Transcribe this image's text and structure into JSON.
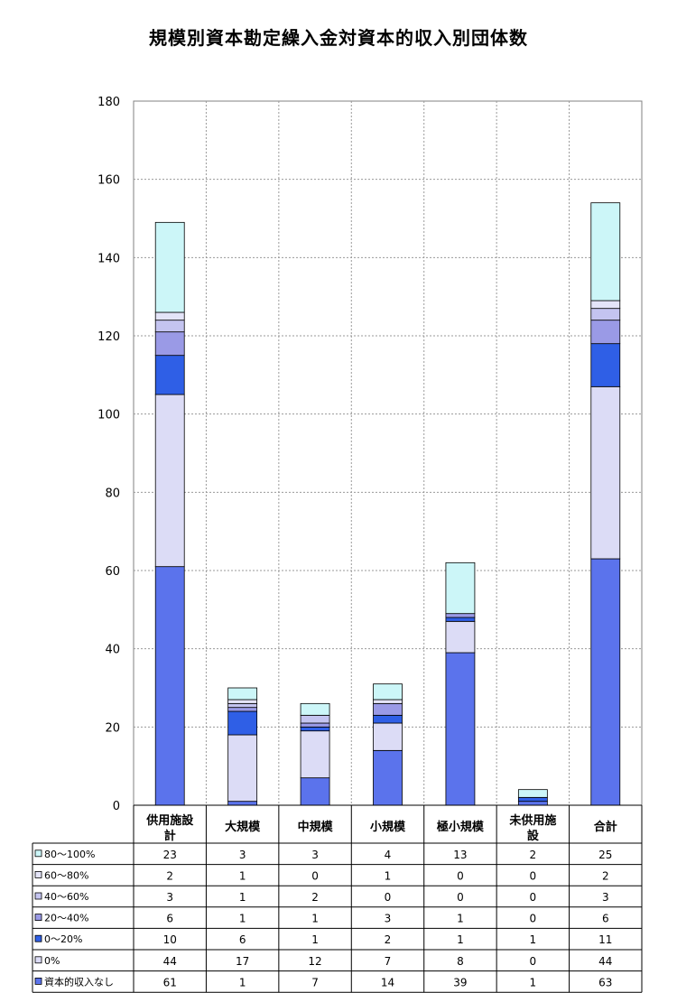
{
  "chart_data": {
    "type": "bar",
    "stacked": true,
    "title": "規模別資本勘定繰入金対資本的収入別団体数",
    "categories": [
      [
        "供用施設",
        "計"
      ],
      [
        "大規模"
      ],
      [
        "中規模"
      ],
      [
        "小規模"
      ],
      [
        "極小規模"
      ],
      [
        "未供用施",
        "設"
      ],
      [
        "合計"
      ]
    ],
    "series": [
      {
        "name": "資本的収入なし",
        "color": "#5b73ec",
        "values": [
          61,
          1,
          7,
          14,
          39,
          1,
          63
        ]
      },
      {
        "name": "0%",
        "color": "#dcdcf6",
        "values": [
          44,
          17,
          12,
          7,
          8,
          0,
          44
        ]
      },
      {
        "name": "0～20%",
        "color": "#2f5fe6",
        "values": [
          10,
          6,
          1,
          2,
          1,
          1,
          11
        ]
      },
      {
        "name": "20～40%",
        "color": "#9a9ae6",
        "values": [
          6,
          1,
          1,
          3,
          1,
          0,
          6
        ]
      },
      {
        "name": "40～60%",
        "color": "#c4c4f0",
        "values": [
          3,
          1,
          2,
          0,
          0,
          0,
          3
        ]
      },
      {
        "name": "60～80%",
        "color": "#e4e4f8",
        "values": [
          2,
          1,
          0,
          1,
          0,
          0,
          2
        ]
      },
      {
        "name": "80～100%",
        "color": "#ccf6f8",
        "values": [
          23,
          3,
          3,
          4,
          13,
          2,
          25
        ]
      }
    ],
    "ylim": [
      0,
      180
    ],
    "yticks": [
      0,
      20,
      40,
      60,
      80,
      100,
      120,
      140,
      160,
      180
    ],
    "grid": true,
    "legend": "data-table-below"
  }
}
